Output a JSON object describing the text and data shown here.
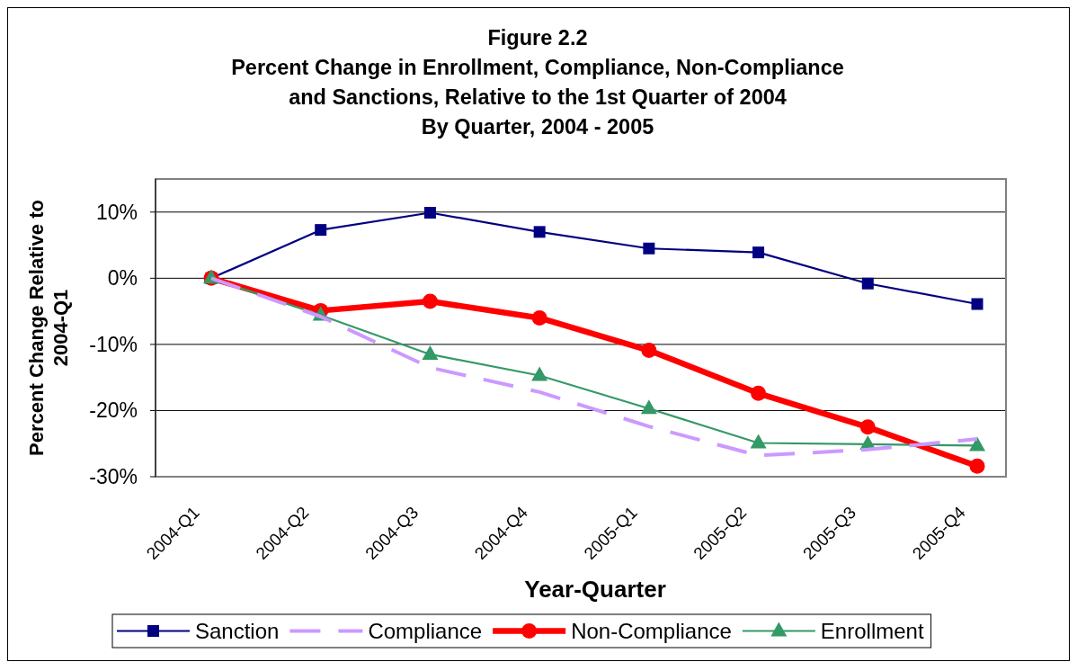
{
  "chart_data": {
    "type": "line",
    "title": "Figure  2.2\nPercent Change in Enrollment, Compliance, Non-Compliance\nand Sanctions, Relative to the 1st Quarter of 2004\nBy Quarter, 2004 - 2005",
    "xlabel": "Year-Quarter",
    "ylabel": "Percent Change Relative to 2004-Q1",
    "categories": [
      "2004-Q1",
      "2004-Q2",
      "2004-Q3",
      "2004-Q4",
      "2005-Q1",
      "2005-Q2",
      "2005-Q3",
      "2005-Q4"
    ],
    "series": [
      {
        "name": "Sanction",
        "color": "#000080",
        "marker": "square",
        "line_style": "solid",
        "values": [
          0,
          7.3,
          9.9,
          7.0,
          4.5,
          3.9,
          -0.8,
          -3.9
        ]
      },
      {
        "name": "Compliance",
        "color": "#cc99ff",
        "marker": "none",
        "line_style": "dashed",
        "values": [
          0,
          -5.8,
          -13.5,
          -17.2,
          -22.4,
          -26.8,
          -25.9,
          -24.3
        ]
      },
      {
        "name": "Non-Compliance",
        "color": "#ff0000",
        "marker": "circle",
        "line_style": "solid",
        "values": [
          0,
          -4.9,
          -3.5,
          -6.0,
          -10.9,
          -17.4,
          -22.5,
          -28.4
        ]
      },
      {
        "name": "Enrollment",
        "color": "#339966",
        "marker": "triangle",
        "line_style": "solid",
        "values": [
          0,
          -5.6,
          -11.5,
          -14.7,
          -19.7,
          -24.9,
          -25.1,
          -25.3
        ]
      }
    ],
    "ylim": [
      -30,
      15
    ],
    "yticks": [
      {
        "value": -30,
        "label": "-30%"
      },
      {
        "value": -20,
        "label": "-20%"
      },
      {
        "value": -10,
        "label": "-10%"
      },
      {
        "value": 0,
        "label": "0%"
      },
      {
        "value": 10,
        "label": "10%"
      }
    ],
    "grid": "y",
    "legend": "bottom"
  }
}
